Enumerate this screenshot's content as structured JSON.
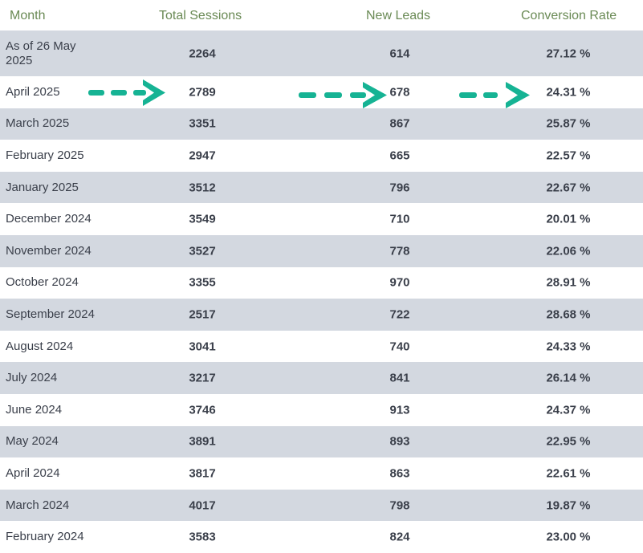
{
  "header": {
    "month": "Month",
    "sessions": "Total Sessions",
    "leads": "New Leads",
    "rate": "Conversion Rate"
  },
  "rows": [
    {
      "month": "As of 26 May 2025",
      "sessions": "2264",
      "leads": "614",
      "rate": "27.12 %"
    },
    {
      "month": "April 2025",
      "sessions": "2789",
      "leads": "678",
      "rate": "24.31 %"
    },
    {
      "month": "March 2025",
      "sessions": "3351",
      "leads": "867",
      "rate": "25.87 %"
    },
    {
      "month": "February 2025",
      "sessions": "2947",
      "leads": "665",
      "rate": "22.57 %"
    },
    {
      "month": "January 2025",
      "sessions": "3512",
      "leads": "796",
      "rate": "22.67 %"
    },
    {
      "month": "December 2024",
      "sessions": "3549",
      "leads": "710",
      "rate": "20.01 %"
    },
    {
      "month": "November 2024",
      "sessions": "3527",
      "leads": "778",
      "rate": "22.06 %"
    },
    {
      "month": "October 2024",
      "sessions": "3355",
      "leads": "970",
      "rate": "28.91 %"
    },
    {
      "month": "September 2024",
      "sessions": "2517",
      "leads": "722",
      "rate": "28.68 %"
    },
    {
      "month": "August 2024",
      "sessions": "3041",
      "leads": "740",
      "rate": "24.33 %"
    },
    {
      "month": "July 2024",
      "sessions": "3217",
      "leads": "841",
      "rate": "26.14 %"
    },
    {
      "month": "June 2024",
      "sessions": "3746",
      "leads": "913",
      "rate": "24.37 %"
    },
    {
      "month": "May 2024",
      "sessions": "3891",
      "leads": "893",
      "rate": "22.95 %"
    },
    {
      "month": "April 2024",
      "sessions": "3817",
      "leads": "863",
      "rate": "22.61 %"
    },
    {
      "month": "March 2024",
      "sessions": "4017",
      "leads": "798",
      "rate": "19.87 %"
    },
    {
      "month": "February 2024",
      "sessions": "3583",
      "leads": "824",
      "rate": "23.00 %"
    }
  ],
  "annotations": {
    "arrow_color": "#16b394",
    "arrow_icon": "dashed-arrow-right-icon"
  }
}
